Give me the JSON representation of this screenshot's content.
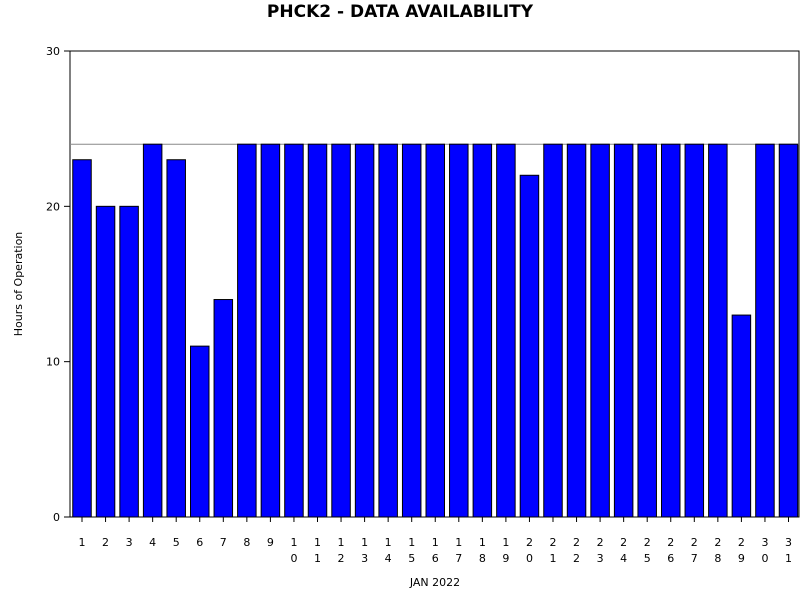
{
  "chart_data": {
    "type": "bar",
    "title": "PHCK2 - DATA AVAILABILITY",
    "xlabel": "JAN 2022",
    "ylabel": "Hours of Operation",
    "categories": [
      "1",
      "2",
      "3",
      "4",
      "5",
      "6",
      "7",
      "8",
      "9",
      "10",
      "11",
      "12",
      "13",
      "14",
      "15",
      "16",
      "17",
      "18",
      "19",
      "20",
      "21",
      "22",
      "23",
      "24",
      "25",
      "26",
      "27",
      "28",
      "29",
      "30",
      "31"
    ],
    "values": [
      23,
      20,
      20,
      24,
      23,
      11,
      14,
      24,
      24,
      24,
      24,
      24,
      24,
      24,
      24,
      24,
      24,
      24,
      24,
      22,
      24,
      24,
      24,
      24,
      24,
      24,
      24,
      24,
      13,
      24,
      24
    ],
    "ylim": [
      0,
      30
    ],
    "yticks": [
      "0",
      "10",
      "20",
      "30"
    ],
    "reference_line": 24,
    "bar_color": "#0000ff",
    "grid": false
  }
}
